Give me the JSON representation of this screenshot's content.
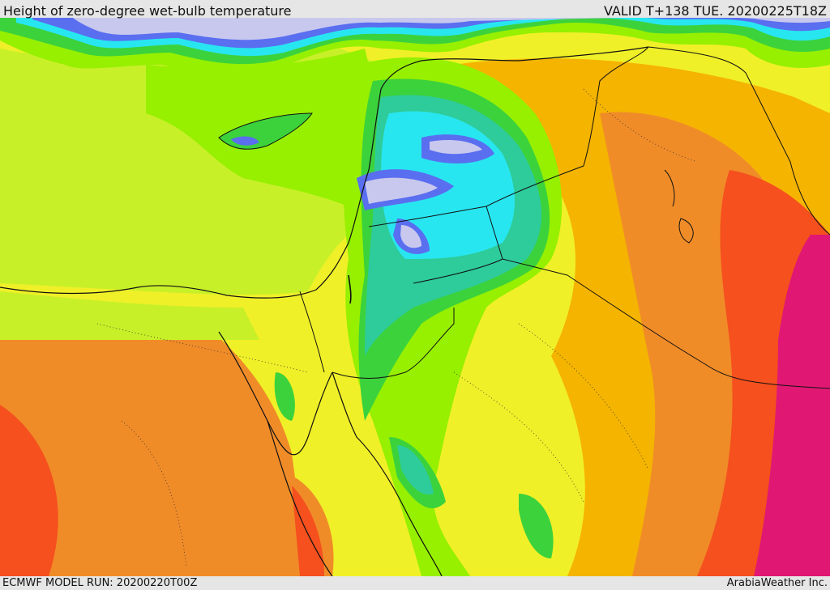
{
  "header": {
    "title": "Height of zero-degree wet-bulb temperature",
    "valid_time": "VALID T+138 TUE. 20200225T18Z"
  },
  "footer": {
    "model_run": "ECMWF MODEL RUN: 20200220T00Z",
    "credit": "ArabiaWeather Inc."
  },
  "palette": {
    "lavender": "#c8c8ee",
    "blue": "#5a6ef0",
    "cyan": "#28e6f0",
    "teal": "#2ecc9a",
    "green": "#3cd23c",
    "light_green": "#96f000",
    "yellow_green": "#c8f028",
    "yellow": "#f0f028",
    "orange_yellow": "#f5b400",
    "orange": "#f08c28",
    "red_orange": "#f5501e",
    "magenta": "#e01873",
    "border": "#111111"
  }
}
